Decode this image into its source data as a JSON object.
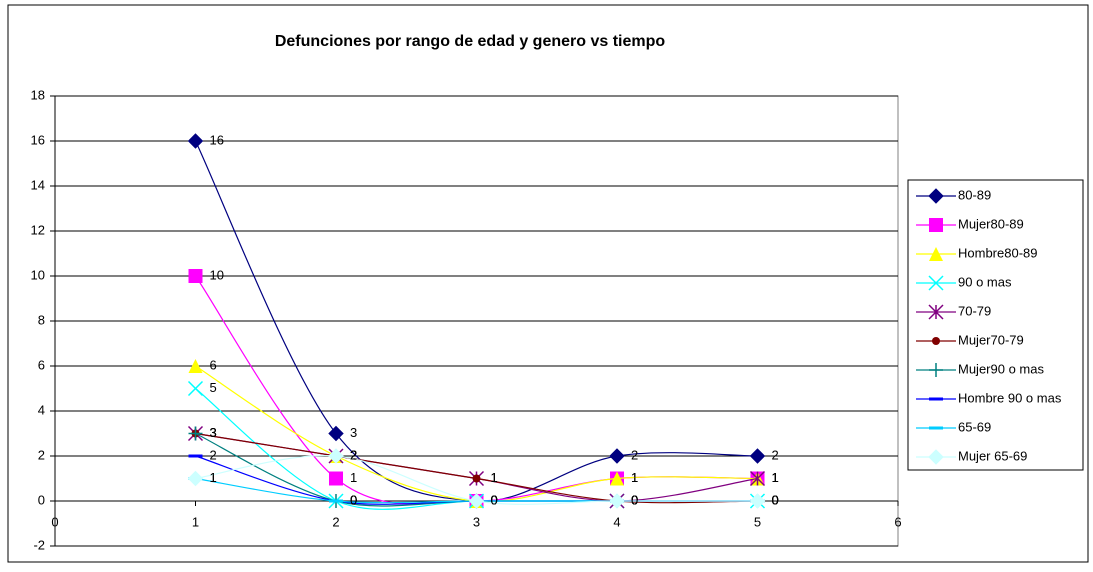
{
  "chart_data": {
    "type": "line",
    "title": "Defunciones por rango de edad y genero vs tiempo",
    "x": [
      1,
      2,
      3,
      4,
      5
    ],
    "xlim": [
      0,
      6
    ],
    "xticks": [
      0,
      1,
      2,
      3,
      4,
      5,
      6
    ],
    "ylim": [
      -2,
      18
    ],
    "yticks": [
      -2,
      0,
      2,
      4,
      6,
      8,
      10,
      12,
      14,
      16,
      18
    ],
    "grid": true,
    "smooth": true,
    "legend": "right",
    "series": [
      {
        "name": "80-89",
        "color": "#000080",
        "marker": "diamond",
        "values": [
          16,
          3,
          0,
          2,
          2
        ]
      },
      {
        "name": "Mujer80-89",
        "color": "#FF00FF",
        "marker": "square",
        "values": [
          10,
          1,
          0,
          1,
          1
        ]
      },
      {
        "name": "Hombre80-89",
        "color": "#FFFF00",
        "marker": "triangle",
        "values": [
          6,
          2,
          0,
          1,
          1
        ]
      },
      {
        "name": "90 o mas",
        "color": "#00FFFF",
        "marker": "x",
        "values": [
          5,
          0,
          0,
          0,
          0
        ]
      },
      {
        "name": "70-79",
        "color": "#800080",
        "marker": "star",
        "values": [
          3,
          2,
          1,
          0,
          1
        ]
      },
      {
        "name": "Mujer70-79",
        "color": "#800000",
        "marker": "circle",
        "values": [
          3,
          2,
          1,
          0,
          0
        ]
      },
      {
        "name": "Mujer90 o mas",
        "color": "#008080",
        "marker": "plus",
        "values": [
          3,
          0,
          0,
          0,
          0
        ]
      },
      {
        "name": "Hombre 90 o mas",
        "color": "#0000FF",
        "marker": "dash",
        "values": [
          2,
          0,
          0,
          0,
          0
        ]
      },
      {
        "name": "65-69",
        "color": "#00CCFF",
        "marker": "dash",
        "values": [
          1,
          0,
          0,
          0,
          0
        ]
      },
      {
        "name": "Mujer 65-69",
        "color": "#CCFFFF",
        "marker": "diamond",
        "values": [
          1,
          2,
          0,
          0,
          0
        ]
      }
    ]
  }
}
